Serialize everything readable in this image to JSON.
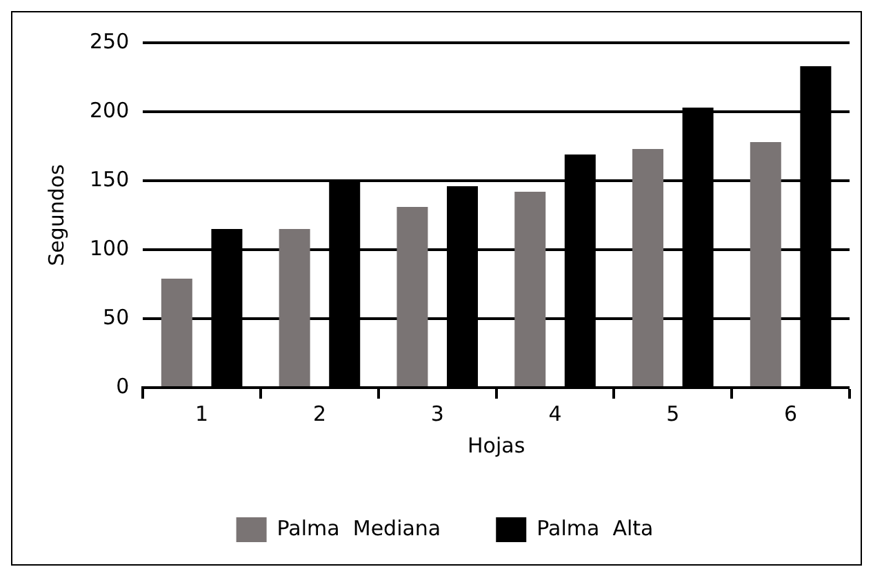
{
  "chart_data": {
    "type": "bar",
    "xlabel": "Hojas",
    "ylabel": "Segundos",
    "categories": [
      "1",
      "2",
      "3",
      "4",
      "5",
      "6"
    ],
    "series": [
      {
        "name": "Palma  Mediana",
        "color": "#7a7474",
        "values": [
          79,
          115,
          131,
          142,
          173,
          178
        ]
      },
      {
        "name": "Palma  Alta",
        "color": "#000000",
        "values": [
          115,
          150,
          146,
          169,
          203,
          233
        ]
      }
    ],
    "ylim": [
      0,
      250
    ],
    "yticks": [
      0,
      50,
      100,
      150,
      200,
      250
    ],
    "grid": "y",
    "legend": "bottom"
  }
}
